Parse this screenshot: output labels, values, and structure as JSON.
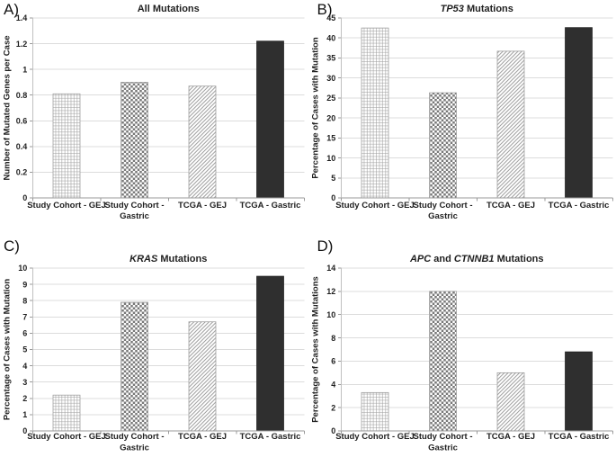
{
  "figure": {
    "background": "#ffffff"
  },
  "colors": {
    "solid_bar": "#2f2f2f",
    "solid_bar_edge": "#1f1f1f",
    "pattern_stroke": "#9a9a9a",
    "pattern_bar_edge": "#9a9a9a",
    "gridline": "#dcdcdc",
    "y_axis_line": "#c0c0c0",
    "x_axis_line": "#9a9a9a",
    "tick_mark": "#9a9a9a",
    "text": "#1f1f1f"
  },
  "categories": [
    "Study Cohort - GEJ",
    "Study Cohort - Gastric",
    "TCGA - GEJ",
    "TCGA - Gastric"
  ],
  "category_lines": [
    [
      "Study Cohort - GEJ"
    ],
    [
      "Study Cohort -",
      "Gastric"
    ],
    [
      "TCGA - GEJ"
    ],
    [
      "TCGA - Gastric"
    ]
  ],
  "bar_patterns": [
    "grid",
    "checker",
    "diagonal",
    "solid"
  ],
  "chart_data": [
    {
      "type": "bar",
      "panel_label": "A)",
      "title": "All Mutations",
      "title_parts": [
        {
          "text": "All Mutations",
          "italic": false
        }
      ],
      "xlabel": "",
      "ylabel": "Number of Mutated Genes per Case",
      "ylim": [
        0,
        1.4
      ],
      "yticks": [
        "0",
        "0.2",
        "0.4",
        "0.6",
        "0.8",
        "1",
        "1.2",
        "1.4"
      ],
      "categories": [
        "Study Cohort - GEJ",
        "Study Cohort - Gastric",
        "TCGA - GEJ",
        "TCGA - Gastric"
      ],
      "values": [
        0.81,
        0.9,
        0.87,
        1.22
      ],
      "grid": true,
      "legend_position": "none"
    },
    {
      "type": "bar",
      "panel_label": "B)",
      "title": "TP53 Mutations",
      "title_parts": [
        {
          "text": "TP53",
          "italic": true
        },
        {
          "text": " Mutations",
          "italic": false
        }
      ],
      "xlabel": "",
      "ylabel": "Percentage of Cases with Mutation",
      "ylim": [
        0,
        45
      ],
      "yticks": [
        "0",
        "5",
        "10",
        "15",
        "20",
        "25",
        "30",
        "35",
        "40",
        "45"
      ],
      "categories": [
        "Study Cohort - GEJ",
        "Study Cohort - Gastric",
        "TCGA - GEJ",
        "TCGA - Gastric"
      ],
      "values": [
        42.5,
        26.3,
        36.7,
        42.6
      ],
      "grid": true,
      "legend_position": "none"
    },
    {
      "type": "bar",
      "panel_label": "C)",
      "title": "KRAS Mutations",
      "title_parts": [
        {
          "text": "KRAS",
          "italic": true
        },
        {
          "text": " Mutations",
          "italic": false
        }
      ],
      "xlabel": "",
      "ylabel": "Percentage of Cases with Mutation",
      "ylim": [
        0,
        10
      ],
      "yticks": [
        "0",
        "1",
        "2",
        "3",
        "4",
        "5",
        "6",
        "7",
        "8",
        "9",
        "10"
      ],
      "categories": [
        "Study Cohort - GEJ",
        "Study Cohort - Gastric",
        "TCGA - GEJ",
        "TCGA - Gastric"
      ],
      "values": [
        2.2,
        7.9,
        6.7,
        9.5
      ],
      "grid": true,
      "legend_position": "none"
    },
    {
      "type": "bar",
      "panel_label": "D)",
      "title": "APC and CTNNB1 Mutations",
      "title_parts": [
        {
          "text": "APC",
          "italic": true
        },
        {
          "text": " and ",
          "italic": false
        },
        {
          "text": "CTNNB1",
          "italic": true
        },
        {
          "text": " Mutations",
          "italic": false
        }
      ],
      "xlabel": "",
      "ylabel": "Percentage of Cases with Mutations",
      "ylim": [
        0,
        14
      ],
      "yticks": [
        "0",
        "2",
        "4",
        "6",
        "8",
        "10",
        "12",
        "14"
      ],
      "categories": [
        "Study Cohort - GEJ",
        "Study Cohort - Gastric",
        "TCGA - GEJ",
        "TCGA - Gastric"
      ],
      "values": [
        3.3,
        12,
        5,
        6.8
      ],
      "grid": true,
      "legend_position": "none"
    }
  ]
}
